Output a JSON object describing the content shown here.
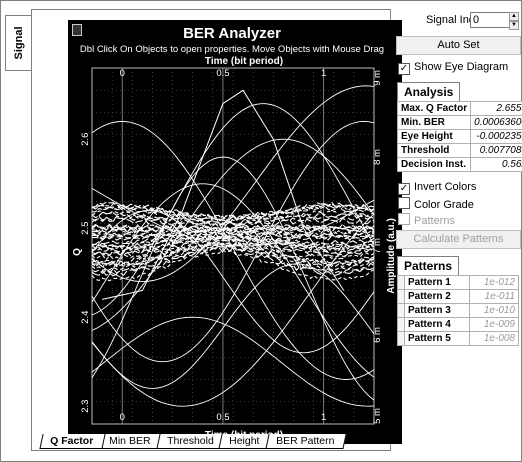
{
  "side_tab": {
    "label": "Signal"
  },
  "chart": {
    "title": "BER Analyzer",
    "hint": "Dbl Click On Objects to open properties.  Move Objects with Mouse Drag",
    "top_xlabel": "Time (bit period)",
    "bottom_xlabel": "Time (bit period)",
    "left_ylabel": "Q",
    "right_ylabel": "Amplitude (a.u.)"
  },
  "chart_data": {
    "type": "line",
    "title": "BER Analyzer",
    "xlabel": "Time (bit period)",
    "x_ticks": [
      "0",
      "0.5",
      "1"
    ],
    "xlim": [
      -0.15,
      1.25
    ],
    "left_axis": {
      "label": "Q",
      "ticks": [
        "2.3",
        "2.4",
        "2.5",
        "2.6"
      ],
      "range": [
        2.28,
        2.68
      ]
    },
    "right_axis": {
      "label": "Amplitude (a.u.)",
      "ticks": [
        "5 m",
        "6 m",
        "7 m",
        "8 m",
        "9 m"
      ],
      "range": [
        0.005,
        0.009
      ]
    },
    "grid": true,
    "background": "#000000",
    "trace_color": "#ffffff",
    "eye_band_amplitude": {
      "center": 0.0071,
      "upper_at_edges": 0.00748,
      "lower_at_edges": 0.00662,
      "upper_at_center": 0.00733,
      "lower_at_center": 0.00693
    },
    "q_factor_curve": {
      "x": [
        -0.1,
        0.1,
        0.3,
        0.5,
        0.6,
        0.75,
        0.9,
        1.1
      ],
      "y": [
        2.42,
        2.43,
        2.52,
        2.64,
        2.655,
        2.6,
        2.5,
        2.43
      ]
    }
  },
  "bottom_tabs": [
    "Q Factor",
    "Min BER",
    "Threshold",
    "Height",
    "BER Pattern"
  ],
  "active_tab": "Q Factor",
  "signal_index": {
    "label": "Signal Index",
    "value": "0"
  },
  "auto_set": {
    "label": "Auto Set"
  },
  "show_eye": {
    "label": "Show Eye Diagram",
    "checked": true
  },
  "analysis": {
    "title": "Analysis",
    "rows": [
      {
        "key": "Max. Q Factor",
        "value": "2.65531"
      },
      {
        "key": "Min. BER",
        "value": "0.000636003"
      },
      {
        "key": "Eye Height",
        "value": "-0.00023536"
      },
      {
        "key": "Threshold",
        "value": "0.00770831"
      },
      {
        "key": "Decision Inst.",
        "value": "0.5625"
      }
    ]
  },
  "invert_colors": {
    "label": "Invert Colors",
    "checked": true
  },
  "color_grade": {
    "label": "Color Grade",
    "checked": false
  },
  "patterns_chk": {
    "label": "Patterns",
    "checked": false,
    "disabled": true
  },
  "calc_patterns": {
    "label": "Calculate Patterns",
    "disabled": true
  },
  "patterns": {
    "title": "Patterns",
    "rows": [
      {
        "key": "Pattern 1",
        "value": "1e-012"
      },
      {
        "key": "Pattern 2",
        "value": "1e-011"
      },
      {
        "key": "Pattern 3",
        "value": "1e-010"
      },
      {
        "key": "Pattern 4",
        "value": "1e-009"
      },
      {
        "key": "Pattern 5",
        "value": "1e-008"
      }
    ]
  }
}
